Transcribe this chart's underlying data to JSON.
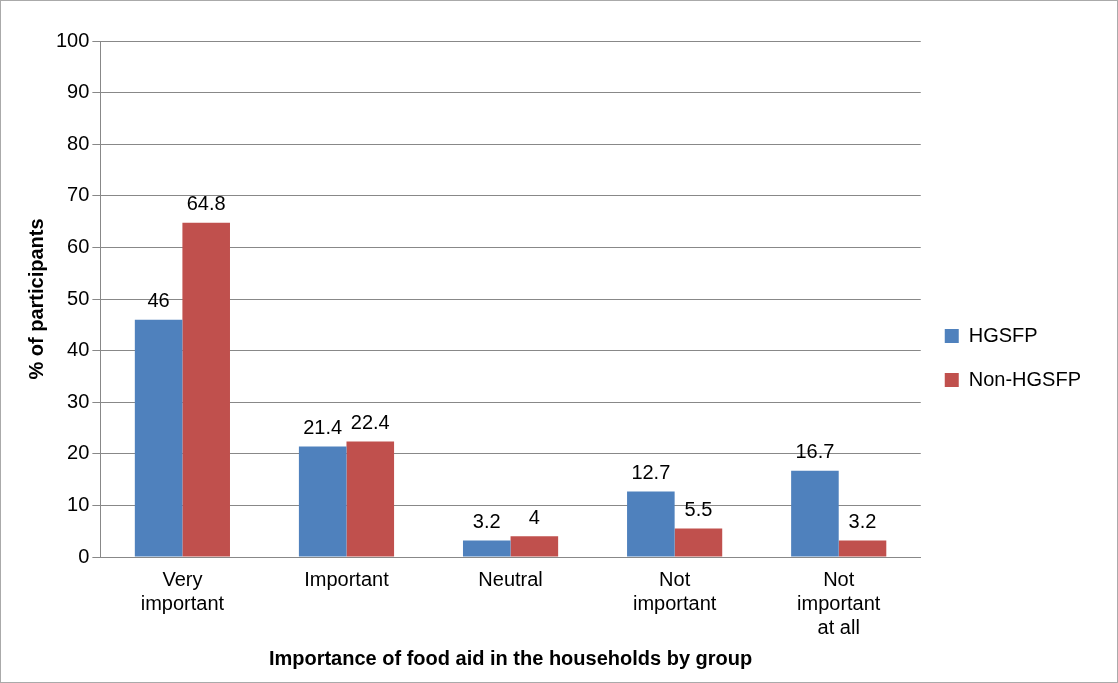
{
  "chart_data": {
    "type": "bar",
    "xlabel": "Importance of food aid in the households by group",
    "ylabel": "% of participants",
    "categories": [
      "Very important",
      "Important",
      "Neutral",
      "Not important",
      "Not important at all"
    ],
    "series": [
      {
        "name": "HGSFP",
        "color": "#4f81bd",
        "values": [
          46,
          21.4,
          3.2,
          12.7,
          16.7
        ]
      },
      {
        "name": "Non-HGSFP",
        "color": "#c0504d",
        "values": [
          64.8,
          22.4,
          4,
          5.5,
          3.2
        ]
      }
    ],
    "ylim": [
      0,
      100
    ],
    "yticks": [
      0,
      10,
      20,
      30,
      40,
      50,
      60,
      70,
      80,
      90,
      100
    ],
    "grid": "y",
    "legend": "right",
    "data_labels": true
  }
}
